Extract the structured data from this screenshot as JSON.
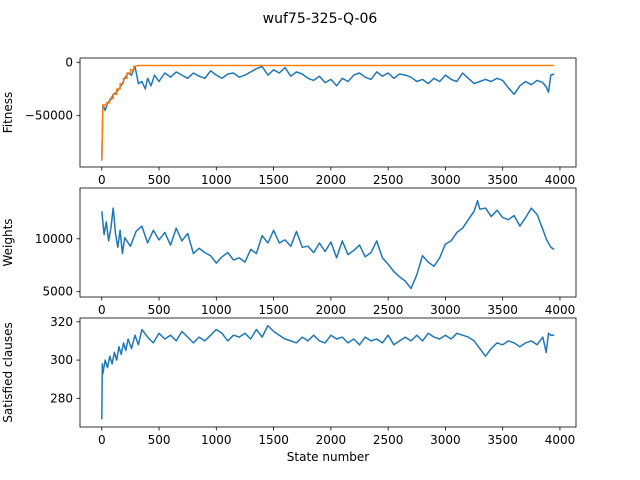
{
  "figure": {
    "title": "wuf75-325-Q-06"
  },
  "colors": {
    "primary": "#1f77b4",
    "secondary": "#ff7f0e"
  },
  "chart_data": [
    {
      "type": "line",
      "ylabel": "Fitness",
      "xlim": [
        -190,
        4140
      ],
      "ylim": [
        -98000,
        4000
      ],
      "xticks": [
        0,
        500,
        1000,
        1500,
        2000,
        2500,
        3000,
        3500,
        4000
      ],
      "yticks": [
        0,
        -50000
      ],
      "ytick_labels": [
        "0",
        "−50000"
      ],
      "series": [
        {
          "color": "#1f77b4",
          "x": [
            0,
            10,
            30,
            50,
            80,
            100,
            130,
            150,
            180,
            200,
            230,
            260,
            290,
            320,
            350,
            380,
            400,
            430,
            460,
            500,
            550,
            600,
            650,
            700,
            750,
            800,
            850,
            900,
            950,
            1000,
            1050,
            1100,
            1150,
            1200,
            1250,
            1300,
            1350,
            1400,
            1450,
            1500,
            1550,
            1600,
            1650,
            1700,
            1750,
            1800,
            1850,
            1900,
            1950,
            2000,
            2050,
            2100,
            2150,
            2200,
            2250,
            2300,
            2350,
            2400,
            2450,
            2500,
            2550,
            2600,
            2650,
            2700,
            2750,
            2800,
            2850,
            2900,
            2950,
            3000,
            3050,
            3100,
            3150,
            3200,
            3250,
            3300,
            3350,
            3400,
            3450,
            3500,
            3550,
            3600,
            3650,
            3700,
            3750,
            3800,
            3850,
            3880,
            3900,
            3920,
            3950
          ],
          "y": [
            -92000,
            -40000,
            -45000,
            -38000,
            -35000,
            -30000,
            -28000,
            -25000,
            -20000,
            -15000,
            -10000,
            -12000,
            -4000,
            -20000,
            -18000,
            -25000,
            -15000,
            -22000,
            -12000,
            -18000,
            -10000,
            -14000,
            -9000,
            -12000,
            -15000,
            -10000,
            -13000,
            -15000,
            -8000,
            -12000,
            -15000,
            -11000,
            -10000,
            -14000,
            -12000,
            -9000,
            -6000,
            -4000,
            -12000,
            -7000,
            -10000,
            -5000,
            -13000,
            -9000,
            -11000,
            -15000,
            -17000,
            -13000,
            -19000,
            -16000,
            -22000,
            -15000,
            -18000,
            -12000,
            -10000,
            -14000,
            -16000,
            -9000,
            -13000,
            -10000,
            -15000,
            -11000,
            -12000,
            -14000,
            -18000,
            -16000,
            -20000,
            -15000,
            -18000,
            -12000,
            -16000,
            -18000,
            -10000,
            -15000,
            -20000,
            -18000,
            -16000,
            -18000,
            -15000,
            -17000,
            -24000,
            -30000,
            -22000,
            -18000,
            -21000,
            -17000,
            -19000,
            -23000,
            -28000,
            -12000,
            -11000
          ]
        },
        {
          "color": "#ff7f0e",
          "x": [
            0,
            10,
            40,
            40,
            70,
            70,
            100,
            100,
            130,
            130,
            160,
            160,
            190,
            190,
            220,
            220,
            250,
            250,
            280,
            280,
            320,
            3950
          ],
          "y": [
            -92000,
            -40000,
            -40000,
            -38000,
            -38000,
            -34000,
            -34000,
            -30000,
            -30000,
            -25000,
            -25000,
            -20000,
            -20000,
            -15000,
            -15000,
            -10000,
            -10000,
            -7000,
            -7000,
            -4000,
            -3000,
            -3000
          ]
        }
      ]
    },
    {
      "type": "line",
      "ylabel": "Weights",
      "xlim": [
        -190,
        4140
      ],
      "ylim": [
        4500,
        14800
      ],
      "xticks": [
        0,
        500,
        1000,
        1500,
        2000,
        2500,
        3000,
        3500,
        4000
      ],
      "yticks": [
        5000,
        10000
      ],
      "ytick_labels": [
        "5000",
        "10000"
      ],
      "series": [
        {
          "color": "#1f77b4",
          "x": [
            0,
            20,
            40,
            60,
            80,
            100,
            120,
            140,
            160,
            180,
            200,
            250,
            300,
            350,
            400,
            450,
            500,
            550,
            600,
            650,
            700,
            750,
            800,
            850,
            900,
            950,
            1000,
            1050,
            1100,
            1150,
            1200,
            1250,
            1300,
            1350,
            1400,
            1450,
            1500,
            1550,
            1600,
            1650,
            1700,
            1750,
            1800,
            1850,
            1900,
            1950,
            2000,
            2050,
            2100,
            2150,
            2200,
            2250,
            2300,
            2350,
            2400,
            2450,
            2500,
            2550,
            2600,
            2650,
            2700,
            2750,
            2800,
            2850,
            2900,
            2950,
            3000,
            3050,
            3100,
            3150,
            3200,
            3250,
            3280,
            3300,
            3350,
            3400,
            3450,
            3500,
            3550,
            3600,
            3650,
            3700,
            3750,
            3800,
            3850,
            3880,
            3900,
            3920,
            3950
          ],
          "y": [
            12600,
            10400,
            11600,
            9800,
            11000,
            12900,
            10500,
            9200,
            10800,
            8600,
            10100,
            9300,
            10700,
            11200,
            9600,
            10800,
            9900,
            10600,
            9400,
            11000,
            9800,
            10500,
            8600,
            9100,
            8700,
            8400,
            7700,
            8300,
            8700,
            8000,
            8200,
            7800,
            9000,
            8600,
            10300,
            9600,
            10800,
            9600,
            9900,
            9300,
            10700,
            9200,
            9300,
            8700,
            9600,
            8800,
            9700,
            8200,
            9800,
            8500,
            8900,
            9400,
            8300,
            8700,
            9800,
            8200,
            7600,
            6900,
            6400,
            6000,
            5300,
            6600,
            8400,
            7800,
            7400,
            8200,
            9500,
            9800,
            10600,
            11000,
            11800,
            12600,
            13600,
            12800,
            12900,
            12100,
            12700,
            12000,
            11800,
            12200,
            11200,
            12000,
            12900,
            12300,
            10900,
            10000,
            9600,
            9200,
            9000
          ]
        }
      ]
    },
    {
      "type": "line",
      "ylabel": "Satisfied clauses",
      "xlabel": "State number",
      "xlim": [
        -190,
        4140
      ],
      "ylim": [
        265,
        322
      ],
      "xticks": [
        0,
        500,
        1000,
        1500,
        2000,
        2500,
        3000,
        3500,
        4000
      ],
      "yticks": [
        280,
        300,
        320
      ],
      "ytick_labels": [
        "280",
        "300",
        "320"
      ],
      "series": [
        {
          "color": "#1f77b4",
          "x": [
            0,
            5,
            10,
            30,
            50,
            70,
            90,
            110,
            130,
            150,
            170,
            190,
            210,
            230,
            260,
            290,
            320,
            350,
            400,
            450,
            500,
            550,
            600,
            650,
            700,
            750,
            800,
            850,
            900,
            950,
            1000,
            1050,
            1100,
            1150,
            1200,
            1250,
            1300,
            1350,
            1400,
            1450,
            1500,
            1550,
            1600,
            1650,
            1700,
            1750,
            1800,
            1850,
            1900,
            1950,
            2000,
            2050,
            2100,
            2150,
            2200,
            2250,
            2300,
            2350,
            2400,
            2450,
            2500,
            2550,
            2600,
            2650,
            2700,
            2750,
            2800,
            2850,
            2900,
            2950,
            3000,
            3050,
            3100,
            3150,
            3200,
            3250,
            3300,
            3350,
            3400,
            3450,
            3500,
            3550,
            3600,
            3650,
            3700,
            3750,
            3800,
            3850,
            3880,
            3900,
            3920,
            3950
          ],
          "y": [
            269,
            298,
            293,
            300,
            296,
            302,
            298,
            304,
            300,
            307,
            303,
            309,
            305,
            311,
            306,
            313,
            308,
            316,
            312,
            309,
            314,
            311,
            313,
            310,
            315,
            312,
            309,
            312,
            310,
            313,
            316,
            314,
            310,
            313,
            312,
            314,
            311,
            316,
            312,
            318,
            315,
            313,
            311,
            310,
            309,
            312,
            310,
            313,
            310,
            309,
            313,
            311,
            312,
            309,
            311,
            308,
            312,
            310,
            311,
            309,
            313,
            308,
            310,
            312,
            310,
            313,
            310,
            314,
            312,
            311,
            313,
            311,
            314,
            313,
            312,
            310,
            306,
            302,
            306,
            309,
            308,
            310,
            309,
            307,
            309,
            310,
            308,
            312,
            304,
            314,
            313,
            313
          ]
        }
      ]
    }
  ]
}
